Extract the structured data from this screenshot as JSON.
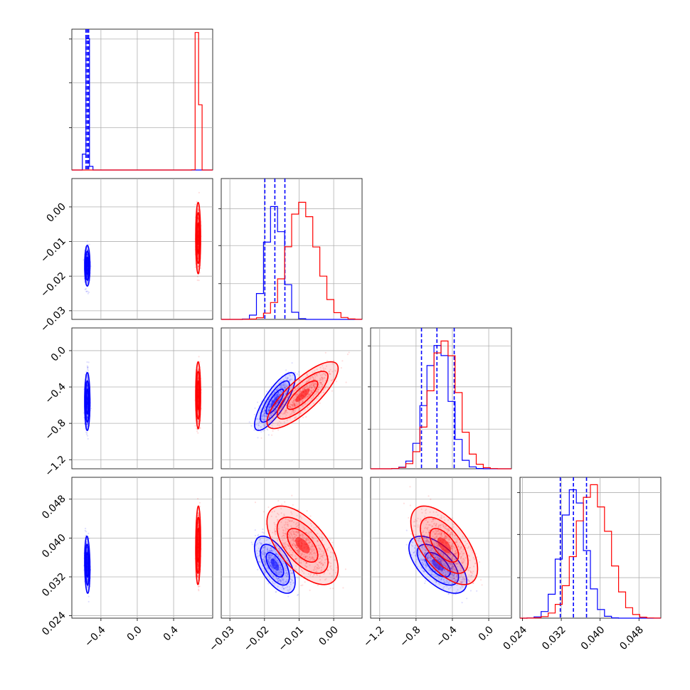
{
  "chart_data": {
    "type": "corner",
    "grid": true,
    "series": [
      {
        "color": "#0000ff",
        "mean": {
          "p0": -0.55,
          "p1": -0.017,
          "p2": -0.56,
          "p3": 0.0345
        },
        "sd": {
          "p0": 0.012,
          "p1": 0.0024,
          "p2": 0.13,
          "p3": 0.0024
        },
        "quantiles": {
          "p0": [
            -0.565,
            -0.55,
            -0.535
          ],
          "p1": [
            -0.0199,
            -0.017,
            -0.0141
          ],
          "p2": [
            -0.74,
            -0.57,
            -0.38
          ],
          "p3": [
            0.0318,
            0.0345,
            0.0372
          ]
        }
      },
      {
        "color": "#ff0000",
        "mean": {
          "p0": 0.67,
          "p1": -0.009,
          "p2": -0.49,
          "p3": 0.0385
        },
        "sd": {
          "p0": 0.011,
          "p1": 0.0042,
          "p2": 0.15,
          "p3": 0.0033
        }
      }
    ],
    "correlations": {
      "blue": {
        "p1p2": 0.8,
        "p1p3": -0.6,
        "p2p3": -0.6,
        "p0p2": 0.0,
        "p0p3": -0.15
      },
      "red": {
        "p1p2": 0.8,
        "p1p3": -0.6,
        "p2p3": -0.6,
        "p0p3": 0.1
      }
    },
    "axes": {
      "p0": {
        "range": [
          -0.72,
          0.83
        ],
        "ticks": [
          -0.4,
          0.0,
          0.4
        ],
        "labels": [
          "−0.4",
          "0.0",
          "0.4"
        ]
      },
      "p1": {
        "range": [
          -0.0325,
          0.0082
        ],
        "ticks": [
          -0.03,
          -0.02,
          -0.01,
          0.0
        ],
        "labels": [
          "−0.03",
          "−0.02",
          "−0.01",
          "0.00"
        ]
      },
      "p2": {
        "range": [
          -1.3,
          0.25
        ],
        "ticks": [
          -1.2,
          -0.8,
          -0.4,
          0.0
        ],
        "labels": [
          "−1.2",
          "−0.8",
          "−0.4",
          "0.0"
        ]
      },
      "p3": {
        "range": [
          0.0235,
          0.0525
        ],
        "ticks": [
          0.024,
          0.032,
          0.04,
          0.048
        ],
        "labels": [
          "0.024",
          "0.032",
          "0.040",
          "0.048"
        ]
      }
    }
  }
}
